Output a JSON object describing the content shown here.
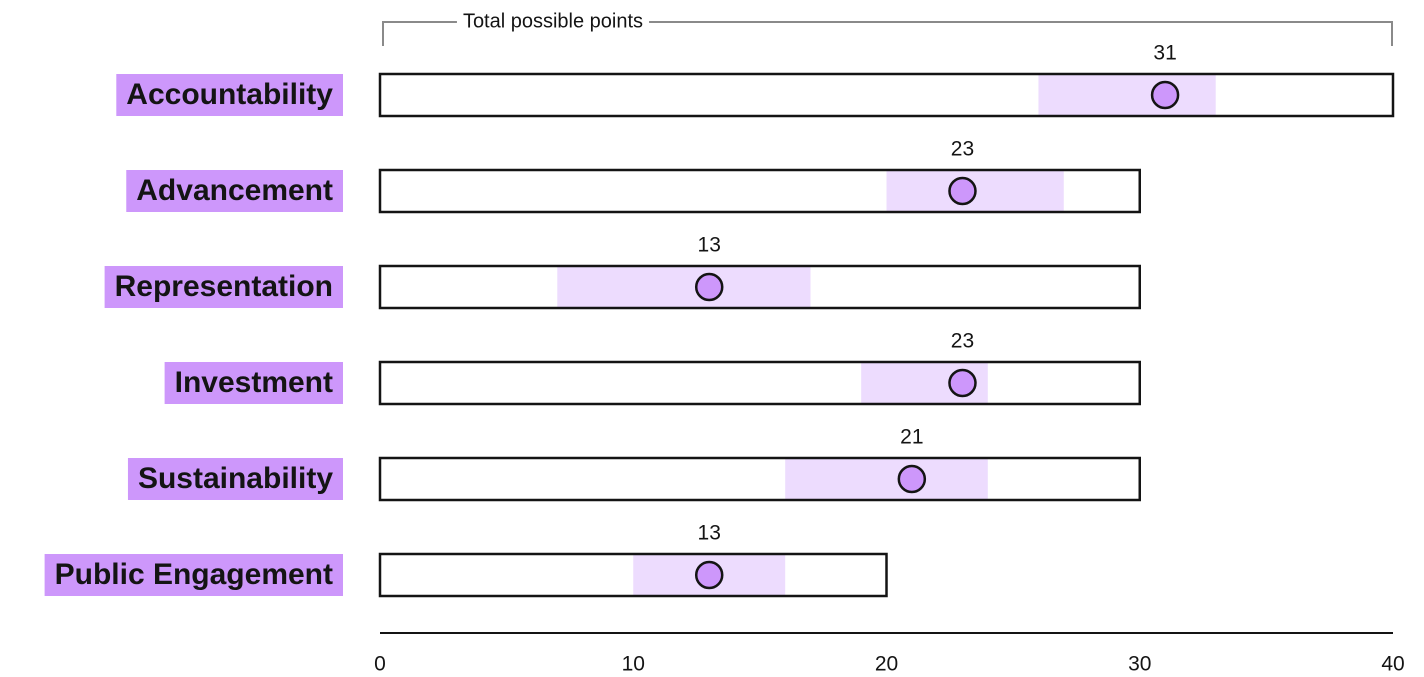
{
  "chart_data": {
    "type": "dot-range",
    "bracket_label": "Total possible points",
    "xlim": [
      0,
      40
    ],
    "xticks": [
      0,
      10,
      20,
      30,
      40
    ],
    "colors": {
      "label_bg": "#cd97fb",
      "range_fill": "#eddcfe",
      "dot_fill": "#cd97fb",
      "outline": "#141414",
      "bracket": "#8a8a8a"
    },
    "rows": [
      {
        "category": "Accountability",
        "max": 40,
        "range": [
          26,
          33
        ],
        "value": 31
      },
      {
        "category": "Advancement",
        "max": 30,
        "range": [
          20,
          27
        ],
        "value": 23
      },
      {
        "category": "Representation",
        "max": 30,
        "range": [
          7,
          17
        ],
        "value": 13
      },
      {
        "category": "Investment",
        "max": 30,
        "range": [
          19,
          24
        ],
        "value": 23
      },
      {
        "category": "Sustainability",
        "max": 30,
        "range": [
          16,
          24
        ],
        "value": 21
      },
      {
        "category": "Public Engagement",
        "max": 20,
        "range": [
          10,
          16
        ],
        "value": 13
      }
    ]
  }
}
